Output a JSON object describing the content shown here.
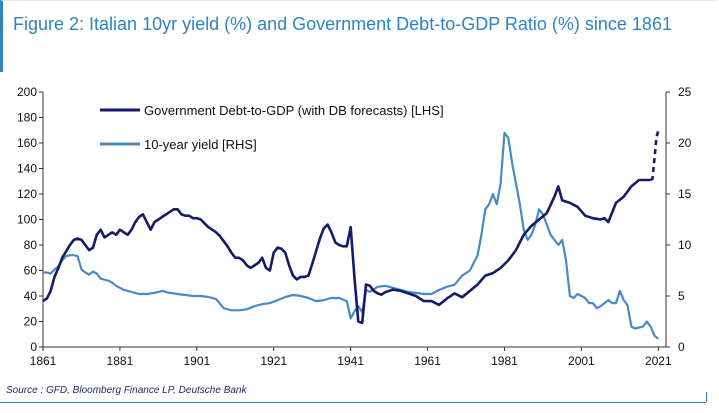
{
  "title": "Figure 2: Italian 10yr yield (%) and Government Debt-to-GDP Ratio (%) since 1861",
  "source": "Source : GFD, Bloomberg Finance LP, Deutsche Bank",
  "chart_data": {
    "type": "line",
    "x_ticks": [
      "1861",
      "1881",
      "1901",
      "1921",
      "1941",
      "1961",
      "1981",
      "2001",
      "2021"
    ],
    "xlim": [
      1861,
      2023
    ],
    "y_left": {
      "ticks": [
        "0",
        "20",
        "40",
        "60",
        "80",
        "100",
        "120",
        "140",
        "160",
        "180",
        "200"
      ],
      "lim": [
        0,
        200
      ]
    },
    "y_right": {
      "ticks": [
        "0",
        "5",
        "10",
        "15",
        "20",
        "25"
      ],
      "lim": [
        0,
        25
      ]
    },
    "grid": false,
    "legend_position": "top-left",
    "series": [
      {
        "name": "Government Debt-to-GDP (with DB forecasts) [LHS]",
        "axis": "left",
        "color": "#151a6b",
        "x": [
          1861,
          1862,
          1863,
          1864,
          1865,
          1866,
          1867,
          1868,
          1869,
          1870,
          1871,
          1872,
          1873,
          1874,
          1875,
          1876,
          1877,
          1878,
          1879,
          1880,
          1881,
          1882,
          1883,
          1884,
          1885,
          1886,
          1887,
          1888,
          1889,
          1890,
          1891,
          1892,
          1893,
          1894,
          1895,
          1896,
          1897,
          1898,
          1899,
          1900,
          1901,
          1902,
          1903,
          1904,
          1905,
          1906,
          1907,
          1908,
          1909,
          1910,
          1911,
          1912,
          1913,
          1914,
          1915,
          1916,
          1917,
          1918,
          1919,
          1920,
          1921,
          1922,
          1923,
          1924,
          1925,
          1926,
          1927,
          1928,
          1929,
          1930,
          1931,
          1932,
          1933,
          1934,
          1935,
          1936,
          1937,
          1938,
          1939,
          1940,
          1941,
          1942,
          1943,
          1944,
          1945,
          1946,
          1947,
          1948,
          1949,
          1950,
          1952,
          1954,
          1956,
          1958,
          1960,
          1962,
          1964,
          1966,
          1968,
          1970,
          1972,
          1974,
          1976,
          1978,
          1980,
          1982,
          1984,
          1986,
          1988,
          1990,
          1992,
          1994,
          1995,
          1996,
          1998,
          2000,
          2002,
          2004,
          2006,
          2007,
          2008,
          2010,
          2012,
          2014,
          2016,
          2018,
          2019
        ],
        "values": [
          36,
          38,
          44,
          55,
          62,
          70,
          75,
          80,
          84,
          85,
          84,
          80,
          76,
          78,
          88,
          92,
          86,
          88,
          90,
          88,
          92,
          90,
          88,
          92,
          98,
          102,
          104,
          98,
          92,
          98,
          100,
          102,
          104,
          106,
          108,
          108,
          104,
          103,
          103,
          101,
          101,
          100,
          97,
          94,
          92,
          90,
          87,
          83,
          79,
          74,
          70,
          70,
          68,
          64,
          62,
          64,
          66,
          70,
          62,
          60,
          74,
          78,
          77,
          74,
          64,
          56,
          53,
          55,
          55,
          56,
          65,
          75,
          85,
          93,
          96,
          90,
          82,
          80,
          79,
          79,
          94,
          54,
          20,
          19,
          49,
          48,
          44,
          42,
          41,
          43,
          45,
          44,
          42,
          40,
          36,
          36,
          33,
          38,
          42,
          39,
          44,
          49,
          56,
          58,
          62,
          68,
          76,
          88,
          95,
          100,
          105,
          118,
          126,
          115,
          113,
          110,
          103,
          101,
          100,
          101,
          98,
          113,
          118,
          126,
          131,
          131,
          131
        ],
        "forecast": {
          "x": [
            2019,
            2019.5,
            2020,
            2020.5,
            2021
          ],
          "values": [
            131,
            132,
            148,
            164,
            170
          ]
        }
      },
      {
        "name": "10-year yield [RHS]",
        "axis": "right",
        "color": "#4a89c8",
        "x": [
          1861,
          1862,
          1863,
          1864,
          1865,
          1866,
          1867,
          1868,
          1869,
          1870,
          1871,
          1872,
          1873,
          1874,
          1875,
          1876,
          1877,
          1878,
          1879,
          1880,
          1882,
          1884,
          1886,
          1888,
          1890,
          1892,
          1894,
          1896,
          1898,
          1900,
          1902,
          1904,
          1906,
          1908,
          1910,
          1912,
          1914,
          1916,
          1918,
          1920,
          1922,
          1924,
          1926,
          1928,
          1930,
          1932,
          1934,
          1936,
          1938,
          1940,
          1941,
          1942,
          1943,
          1944,
          1945,
          1946,
          1948,
          1950,
          1952,
          1954,
          1956,
          1958,
          1960,
          1962,
          1964,
          1966,
          1968,
          1970,
          1972,
          1974,
          1975,
          1976,
          1977,
          1978,
          1979,
          1980,
          1981,
          1982,
          1983,
          1984,
          1985,
          1986,
          1987,
          1988,
          1989,
          1990,
          1991,
          1992,
          1993,
          1994,
          1995,
          1996,
          1997,
          1998,
          1999,
          2000,
          2001,
          2002,
          2003,
          2004,
          2005,
          2006,
          2007,
          2008,
          2009,
          2010,
          2011,
          2012,
          2013,
          2014,
          2015,
          2016,
          2017,
          2018,
          2019,
          2020,
          2021
        ],
        "values": [
          7.3,
          7.3,
          7.2,
          7.6,
          7.9,
          8.5,
          8.9,
          9.0,
          9.0,
          8.9,
          7.6,
          7.3,
          7.1,
          7.4,
          7.2,
          6.7,
          6.6,
          6.5,
          6.3,
          6.0,
          5.6,
          5.4,
          5.2,
          5.2,
          5.3,
          5.5,
          5.3,
          5.2,
          5.1,
          5.0,
          5.0,
          4.9,
          4.7,
          3.8,
          3.6,
          3.6,
          3.7,
          4.0,
          4.2,
          4.3,
          4.6,
          4.9,
          5.1,
          5.0,
          4.8,
          4.5,
          4.6,
          4.8,
          4.8,
          4.5,
          2.8,
          3.5,
          4.0,
          3.4,
          5.6,
          5.4,
          5.9,
          6.0,
          5.8,
          5.6,
          5.4,
          5.3,
          5.2,
          5.2,
          5.6,
          5.9,
          6.1,
          7.0,
          7.5,
          9.0,
          11.0,
          13.5,
          14.0,
          15.0,
          14.0,
          16.0,
          21.0,
          20.5,
          18.0,
          16.0,
          14.0,
          11.5,
          10.5,
          11.0,
          12.0,
          13.5,
          13.0,
          12.0,
          11.0,
          10.5,
          10.0,
          10.5,
          8.5,
          5.0,
          4.8,
          5.2,
          5.0,
          4.8,
          4.3,
          4.3,
          3.8,
          4.0,
          4.3,
          4.6,
          4.3,
          4.3,
          5.5,
          4.6,
          4.1,
          2.0,
          1.8,
          1.9,
          2.0,
          2.5,
          2.0,
          1.1,
          0.8
        ]
      }
    ]
  }
}
